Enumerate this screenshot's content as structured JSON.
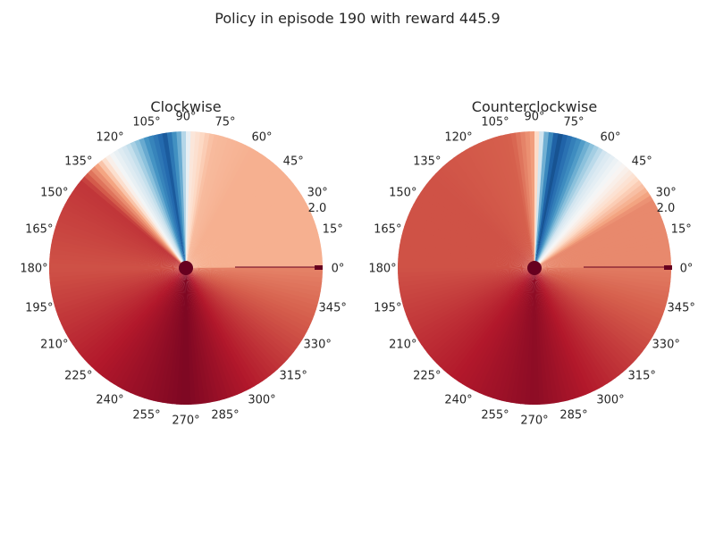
{
  "figure": {
    "title": "Policy in episode 190 with reward 445.9"
  },
  "colors": {
    "cmap_low": "#053061",
    "cmap_mid": "#f7f7f7",
    "cmap_high": "#67001f",
    "text": "#262626"
  },
  "chart_data": [
    {
      "type": "heatmap",
      "projection": "polar",
      "title": "Clockwise",
      "colormap": "RdBu_r",
      "theta_ticks": [
        "0°",
        "15°",
        "30°",
        "45°",
        "60°",
        "75°",
        "90°",
        "105°",
        "120°",
        "135°",
        "150°",
        "165°",
        "180°",
        "195°",
        "210°",
        "225°",
        "240°",
        "255°",
        "270°",
        "285°",
        "300°",
        "315°",
        "330°",
        "345°"
      ],
      "r_tick_label": "2.0",
      "r_range": [
        0,
        2.5
      ],
      "value_range": [
        0,
        1
      ],
      "angle_profile_deg": [
        {
          "theta": 0,
          "value": 0.68
        },
        {
          "theta": 60,
          "value": 0.68
        },
        {
          "theta": 78,
          "value": 0.66
        },
        {
          "theta": 87,
          "value": 0.56
        },
        {
          "theta": 93,
          "value": 0.25
        },
        {
          "theta": 99,
          "value": 0.08
        },
        {
          "theta": 106,
          "value": 0.18
        },
        {
          "theta": 115,
          "value": 0.38
        },
        {
          "theta": 124,
          "value": 0.5
        },
        {
          "theta": 131,
          "value": 0.7
        },
        {
          "theta": 140,
          "value": 0.86
        },
        {
          "theta": 180,
          "value": 0.82
        },
        {
          "theta": 270,
          "value": 0.97
        },
        {
          "theta": 330,
          "value": 0.82
        },
        {
          "theta": 360,
          "value": 0.75
        }
      ]
    },
    {
      "type": "heatmap",
      "projection": "polar",
      "title": "Counterclockwise",
      "colormap": "RdBu_r",
      "theta_ticks": [
        "0°",
        "15°",
        "30°",
        "45°",
        "60°",
        "75°",
        "90°",
        "105°",
        "120°",
        "135°",
        "150°",
        "165°",
        "180°",
        "195°",
        "210°",
        "225°",
        "240°",
        "255°",
        "270°",
        "285°",
        "300°",
        "315°",
        "330°",
        "345°"
      ],
      "r_tick_label": "2.0",
      "r_range": [
        0,
        2.5
      ],
      "value_range": [
        0,
        1
      ],
      "angle_profile_deg": [
        {
          "theta": 0,
          "value": 0.74
        },
        {
          "theta": 30,
          "value": 0.74
        },
        {
          "theta": 45,
          "value": 0.55
        },
        {
          "theta": 58,
          "value": 0.42
        },
        {
          "theta": 70,
          "value": 0.2
        },
        {
          "theta": 80,
          "value": 0.05
        },
        {
          "theta": 86,
          "value": 0.3
        },
        {
          "theta": 90,
          "value": 0.7
        },
        {
          "theta": 100,
          "value": 0.8
        },
        {
          "theta": 140,
          "value": 0.82
        },
        {
          "theta": 180,
          "value": 0.82
        },
        {
          "theta": 270,
          "value": 0.95
        },
        {
          "theta": 330,
          "value": 0.82
        },
        {
          "theta": 360,
          "value": 0.76
        }
      ]
    }
  ]
}
